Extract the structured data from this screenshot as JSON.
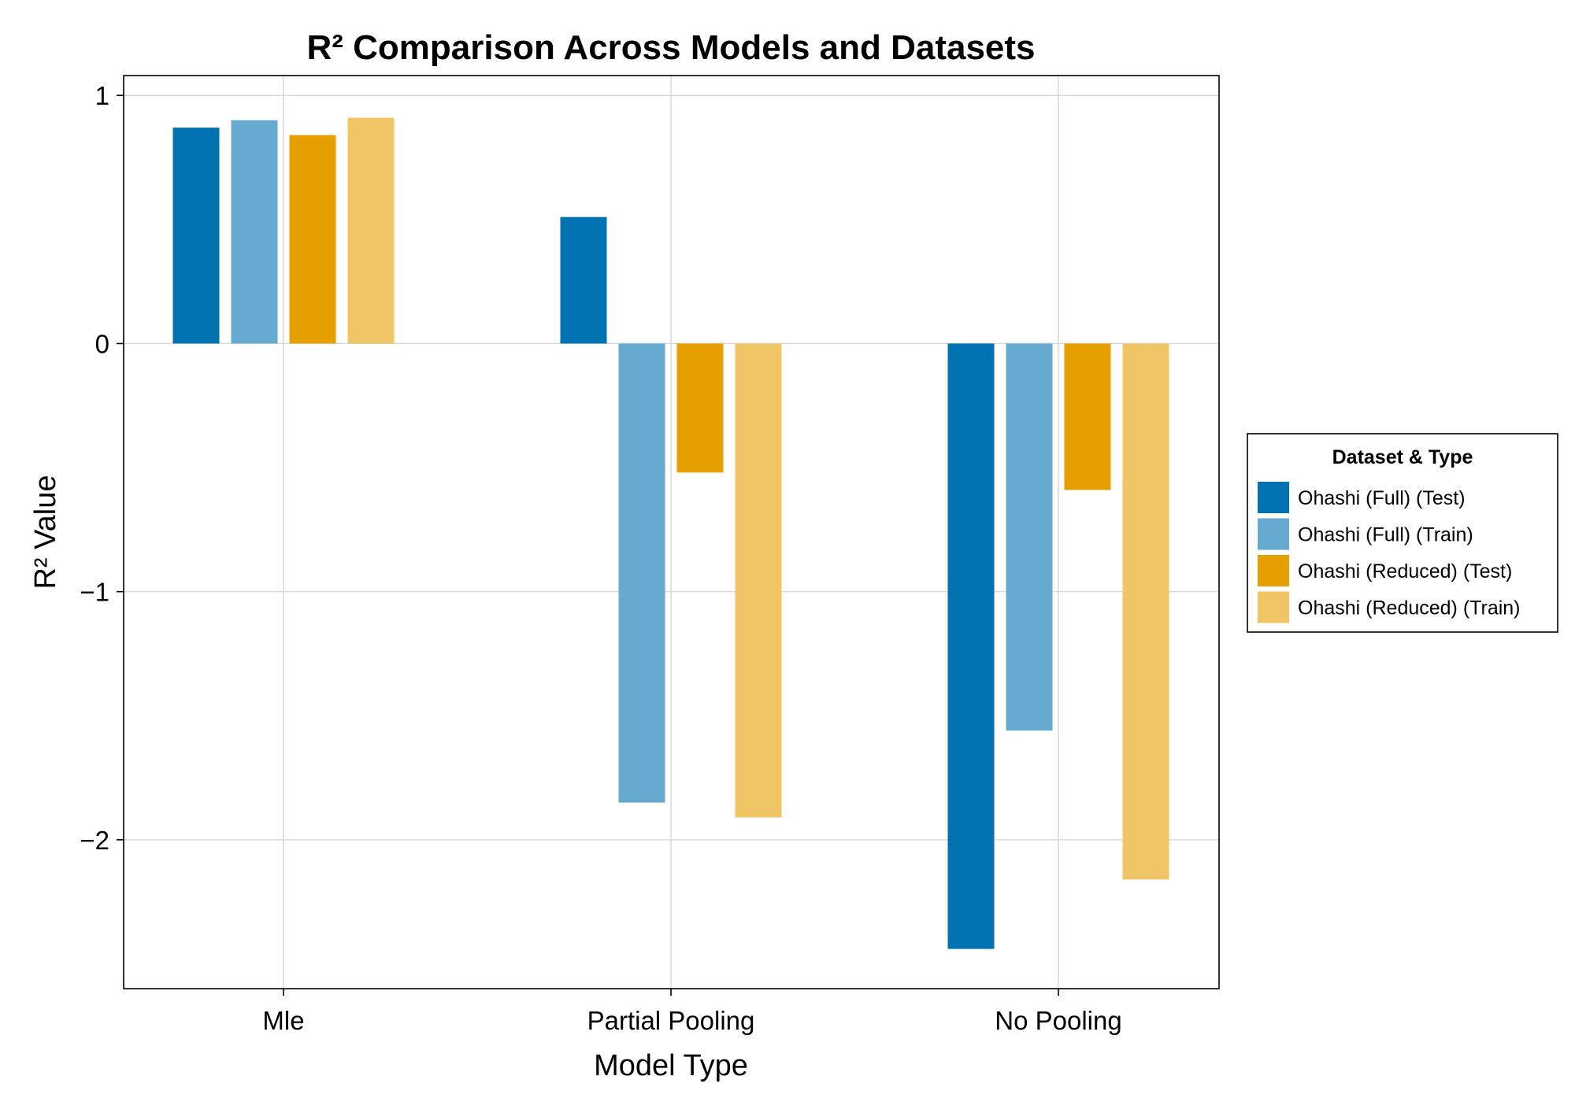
{
  "chart_data": {
    "type": "bar",
    "title": "R² Comparison Across Models and Datasets",
    "xlabel": "Model Type",
    "ylabel": "R² Value",
    "categories": [
      "Mle",
      "Partial Pooling",
      "No Pooling"
    ],
    "series": [
      {
        "name": "Ohashi (Full) (Test)",
        "color": "#0072b2",
        "values": [
          0.87,
          0.51,
          -2.44
        ]
      },
      {
        "name": "Ohashi (Full) (Train)",
        "color": "#66aad2",
        "values": [
          0.9,
          -1.85,
          -1.56
        ]
      },
      {
        "name": "Ohashi (Reduced) (Test)",
        "color": "#e69f00",
        "values": [
          0.84,
          -0.52,
          -0.59
        ]
      },
      {
        "name": "Ohashi (Reduced) (Train)",
        "color": "#f0c566",
        "values": [
          0.91,
          -1.91,
          -2.16
        ]
      }
    ],
    "ylim": [
      -2.6,
      1.08
    ],
    "yticks": [
      1,
      0,
      -1,
      -2
    ],
    "ytick_labels": [
      "1",
      "0",
      "−1",
      "−2"
    ],
    "grid": true,
    "legend": {
      "title": "Dataset & Type",
      "placement": "right"
    }
  }
}
